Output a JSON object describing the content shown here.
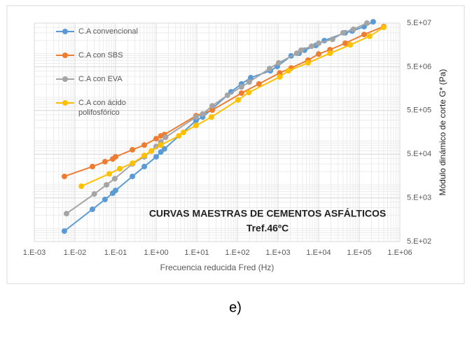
{
  "chart_data": {
    "type": "line",
    "annotations": [
      "CURVAS MAESTRAS DE CEMENTOS ASFÁLTICOS",
      "Tref.46ºC"
    ],
    "xlabel": "Frecuencia reducida Fred (Hz)",
    "ylabel": "Módulo dinámico de corte G* (Pa)",
    "caption": "e)",
    "xscale": "log",
    "yscale": "log",
    "grid": true,
    "minor_grid": true,
    "y_axis_side": "right",
    "legend": "upper left",
    "xlim": [
      0.001,
      1000000
    ],
    "xticks": [
      {
        "value": 0.001,
        "label": "1.E-03"
      },
      {
        "value": 0.01,
        "label": "1.E-02"
      },
      {
        "value": 0.1,
        "label": "1.E-01"
      },
      {
        "value": 1,
        "label": "1.E+00"
      },
      {
        "value": 10,
        "label": "1.E+01"
      },
      {
        "value": 100,
        "label": "1.E+02"
      },
      {
        "value": 1000,
        "label": "1.E+03"
      },
      {
        "value": 10000,
        "label": "1.E+04"
      },
      {
        "value": 100000,
        "label": "1.E+05"
      },
      {
        "value": 1000000,
        "label": "1.E+06"
      }
    ],
    "ylim": [
      500,
      50000000
    ],
    "yticks": [
      {
        "value": 500,
        "label": "5.E+02"
      },
      {
        "value": 5000,
        "label": "5.E+03"
      },
      {
        "value": 50000,
        "label": "5.E+04"
      },
      {
        "value": 500000,
        "label": "5.E+05"
      },
      {
        "value": 5000000,
        "label": "5.E+06"
      },
      {
        "value": 50000000,
        "label": "5.E+07"
      }
    ],
    "series": [
      {
        "name": "C.A convencional",
        "color": "#5b9bd5",
        "x": [
          0.0055,
          0.027,
          0.055,
          0.085,
          0.1,
          0.26,
          0.51,
          1,
          1.3,
          1.6,
          9.6,
          14,
          24,
          70,
          126,
          213,
          650,
          960,
          2100,
          3300,
          4500,
          8500,
          13800,
          45000,
          67000,
          132000,
          220000
        ],
        "values": [
          870,
          2740,
          4600,
          6400,
          7400,
          15500,
          26000,
          43500,
          56000,
          66000,
          295000,
          355000,
          550000,
          1340000,
          2030000,
          2820000,
          4060000,
          5100000,
          8900000,
          10200000,
          12000000,
          15400000,
          19900000,
          30000000,
          33000000,
          41600000,
          53600000
        ]
      },
      {
        "name": "C.A con SBS",
        "color": "#ed7d31",
        "x": [
          0.0055,
          0.027,
          0.055,
          0.085,
          0.1,
          0.26,
          0.51,
          1,
          1.3,
          1.6,
          9.6,
          24,
          126,
          340,
          1100,
          2100,
          5500,
          10000,
          19000,
          45000,
          132000,
          400000
        ],
        "values": [
          15500,
          26000,
          33700,
          38800,
          43500,
          63000,
          81000,
          113000,
          131000,
          141000,
          380000,
          510000,
          1250000,
          2030000,
          3620000,
          4700000,
          7100000,
          9800000,
          12300000,
          17300000,
          27500000,
          41600000
        ]
      },
      {
        "name": "C.A con EVA",
        "color": "#a5a5a5",
        "x": [
          0.0062,
          0.03,
          0.06,
          0.096,
          0.26,
          0.51,
          1,
          1.3,
          1.7,
          9.6,
          14,
          24,
          57,
          126,
          195,
          620,
          1040,
          2900,
          3700,
          6700,
          10000,
          22000,
          40000,
          72000,
          155000
        ],
        "values": [
          2180,
          6150,
          9950,
          13800,
          30000,
          43500,
          75000,
          95000,
          122000,
          355000,
          415000,
          640000,
          1120000,
          1730000,
          2240000,
          4560000,
          6150000,
          10200000,
          12000000,
          14800000,
          17300000,
          21300000,
          30000000,
          36000000,
          50000000
        ]
      },
      {
        "name": "C.A con ácido polifosfórico",
        "color": "#ffc000",
        "x": [
          0.0144,
          0.07,
          0.127,
          0.26,
          0.51,
          0.76,
          1.3,
          3.6,
          4.7,
          9.6,
          23,
          104,
          190,
          1100,
          1800,
          5500,
          19000,
          60000,
          180000,
          400000
        ],
        "values": [
          9250,
          17800,
          23300,
          31000,
          46700,
          59000,
          81000,
          131000,
          158000,
          228000,
          355000,
          870000,
          1290000,
          2930000,
          4060000,
          6150000,
          10200000,
          15900000,
          25000000,
          40000000
        ]
      }
    ]
  }
}
